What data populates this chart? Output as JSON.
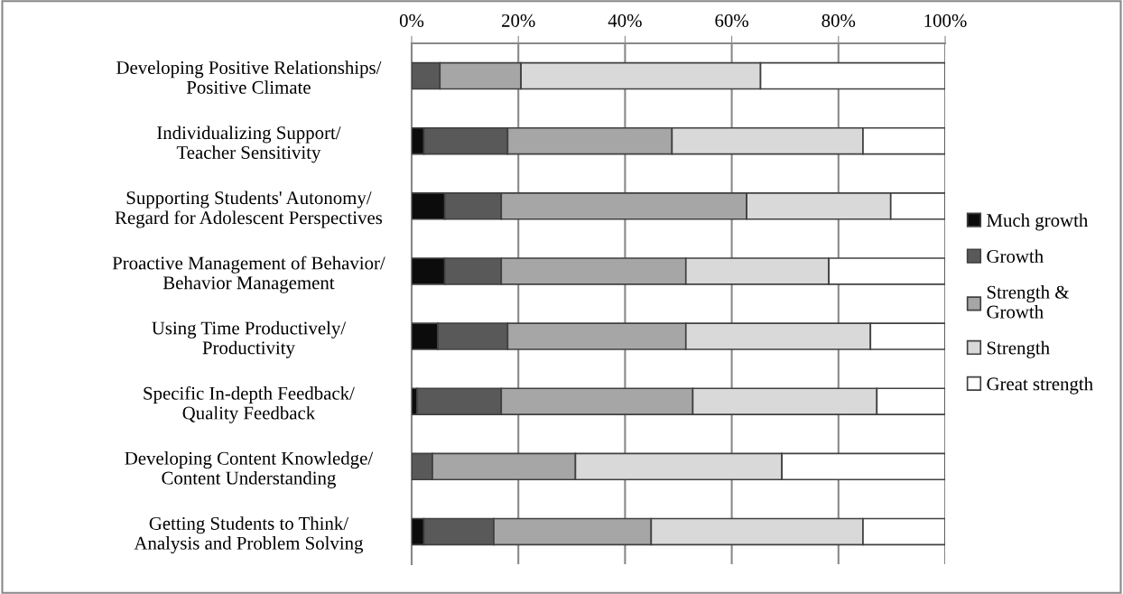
{
  "chart_data": {
    "type": "bar",
    "orientation": "horizontal",
    "stacked": true,
    "categories": [
      "Developing Positive Relationships/\nPositive Climate",
      "Individualizing Support/\nTeacher Sensitivity",
      "Supporting Students' Autonomy/\nRegard for Adolescent Perspectives",
      "Proactive Management of Behavior/\nBehavior Management",
      "Using Time Productively/\nProductivity",
      "Specific In-depth Feedback/\nQuality Feedback",
      "Developing Content Knowledge/\nContent Understanding",
      "Getting Students to Think/\nAnalysis and Problem Solving"
    ],
    "series": [
      {
        "name": "Much growth",
        "color": "#0c0c0c",
        "values": [
          0,
          2.3,
          6.2,
          6.2,
          4.9,
          1.0,
          0,
          2.3
        ]
      },
      {
        "name": "Growth",
        "color": "#595959",
        "values": [
          5.3,
          15.7,
          10.6,
          10.6,
          13.1,
          15.8,
          3.9,
          13.1
        ]
      },
      {
        "name": "Strength &\nGrowth",
        "color": "#a6a6a6",
        "values": [
          15.2,
          30.8,
          46.0,
          34.6,
          33.4,
          35.9,
          26.8,
          29.5
        ]
      },
      {
        "name": "Strength",
        "color": "#d9d9d9",
        "values": [
          44.9,
          35.8,
          27.0,
          26.8,
          34.6,
          34.5,
          38.7,
          39.7
        ]
      },
      {
        "name": "Great strength",
        "color": "#ffffff",
        "values": [
          34.6,
          15.4,
          10.2,
          21.8,
          14.0,
          12.8,
          30.6,
          15.4
        ]
      }
    ],
    "xlim": [
      0,
      100
    ],
    "xticks": [
      {
        "value": 0,
        "label": "0%"
      },
      {
        "value": 20,
        "label": "20%"
      },
      {
        "value": 40,
        "label": "40%"
      },
      {
        "value": 60,
        "label": "60%"
      },
      {
        "value": 80,
        "label": "80%"
      },
      {
        "value": 100,
        "label": "100%"
      }
    ],
    "grid": "x",
    "legend": "right"
  }
}
